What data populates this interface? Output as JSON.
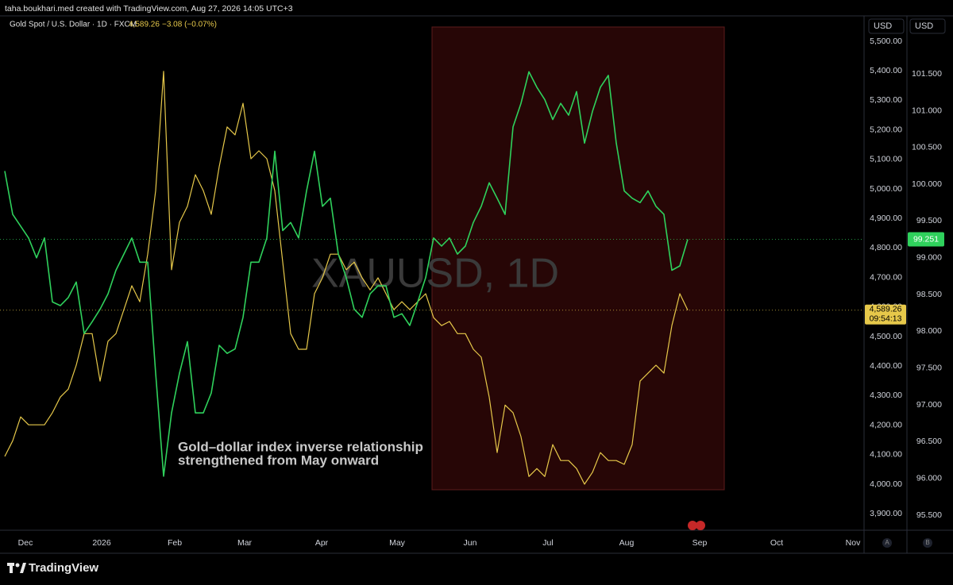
{
  "header": {
    "credit": "taha.boukhari.med created with TradingView.com, Aug 27, 2026 14:05 UTC+3",
    "price": "4,589.26",
    "change": "−3.08 (−0.07%)",
    "logo": "TradingView"
  },
  "chart_data": {
    "type": "line",
    "watermark": "XAUUSD, 1D",
    "annotation": [
      "Gold–dollar index inverse relationship",
      "strengthened from May onward"
    ],
    "axis_unit": "USD",
    "axis_unit_2": "USD",
    "scale_buttons": [
      "A",
      "B"
    ],
    "grid": false,
    "xlim": [
      -0.6,
      108.2
    ],
    "xticks": [
      {
        "value": 2.6,
        "label": "Dec"
      },
      {
        "value": 12.2,
        "label": "2026"
      },
      {
        "value": 21.4,
        "label": "Feb"
      },
      {
        "value": 30.2,
        "label": "Mar"
      },
      {
        "value": 39.9,
        "label": "Apr"
      },
      {
        "value": 49.4,
        "label": "May"
      },
      {
        "value": 58.6,
        "label": "Jun"
      },
      {
        "value": 68.4,
        "label": "Jul"
      },
      {
        "value": 78.3,
        "label": "Aug"
      },
      {
        "value": 87.5,
        "label": "Sep"
      },
      {
        "value": 97.2,
        "label": "Oct"
      },
      {
        "value": 106.8,
        "label": "Nov"
      }
    ],
    "ylim": [
      3844,
      5586
    ],
    "yticks": [
      {
        "value": 3900,
        "label": "3,900.00"
      },
      {
        "value": 4000,
        "label": "4,000.00"
      },
      {
        "value": 4100,
        "label": "4,100.00"
      },
      {
        "value": 4200,
        "label": "4,200.00"
      },
      {
        "value": 4300,
        "label": "4,300.00"
      },
      {
        "value": 4400,
        "label": "4,400.00"
      },
      {
        "value": 4500,
        "label": "4,500.00"
      },
      {
        "value": 4600,
        "label": "4,600.00"
      },
      {
        "value": 4700,
        "label": "4,700.00"
      },
      {
        "value": 4800,
        "label": "4,800.00"
      },
      {
        "value": 4900,
        "label": "4,900.00"
      },
      {
        "value": 5000,
        "label": "5,000.00"
      },
      {
        "value": 5100,
        "label": "5,100.00"
      },
      {
        "value": 5200,
        "label": "5,200.00"
      },
      {
        "value": 5300,
        "label": "5,300.00"
      },
      {
        "value": 5400,
        "label": "5,400.00"
      },
      {
        "value": 5500,
        "label": "5,500.00"
      }
    ],
    "y2lim": [
      95.295,
      102.29
    ],
    "y2ticks": [
      {
        "value": 95.5,
        "label": "95.500"
      },
      {
        "value": 96,
        "label": "96.000"
      },
      {
        "value": 96.5,
        "label": "96.500"
      },
      {
        "value": 97,
        "label": "97.000"
      },
      {
        "value": 97.5,
        "label": "97.500"
      },
      {
        "value": 98,
        "label": "98.000"
      },
      {
        "value": 98.5,
        "label": "98.500"
      },
      {
        "value": 99,
        "label": "99.000"
      },
      {
        "value": 99.5,
        "label": "99.500"
      },
      {
        "value": 100,
        "label": "100.000"
      },
      {
        "value": 100.5,
        "label": "100.500"
      },
      {
        "value": 101,
        "label": "101.000"
      },
      {
        "value": 101.5,
        "label": "101.500"
      }
    ],
    "series": [
      {
        "name": "Gold Spot / U.S. Dollar · 1D · FXCM",
        "color": "#e6c84a",
        "axis": "y",
        "last_label": "4,589.26",
        "countdown": "09:54:13",
        "values": [
          4094,
          4147,
          4228,
          4201,
          4201,
          4201,
          4242,
          4295,
          4322,
          4403,
          4510,
          4510,
          4349,
          4484,
          4510,
          4591,
          4672,
          4618,
          4779,
          4994,
          5398,
          4726,
          4887,
          4941,
          5048,
          4994,
          4914,
          5075,
          5210,
          5183,
          5290,
          5102,
          5129,
          5102,
          4994,
          4752,
          4510,
          4457,
          4457,
          4645,
          4699,
          4779,
          4779,
          4726,
          4752,
          4699,
          4658,
          4699,
          4645,
          4591,
          4618,
          4591,
          4618,
          4645,
          4564,
          4537,
          4551,
          4510,
          4510,
          4457,
          4430,
          4295,
          4107,
          4268,
          4242,
          4161,
          4026,
          4053,
          4026,
          4134,
          4080,
          4080,
          4053,
          4000,
          4040,
          4107,
          4080,
          4080,
          4067,
          4134,
          4349,
          4376,
          4403,
          4376,
          4537,
          4645,
          4589.26
        ]
      },
      {
        "color": "#2fd15c",
        "axis": "y2",
        "last_label": "99.251",
        "values": [
          100.18,
          99.59,
          99.43,
          99.27,
          99.0,
          99.27,
          98.4,
          98.35,
          98.46,
          98.67,
          97.97,
          98.13,
          98.3,
          98.51,
          98.83,
          99.05,
          99.27,
          98.94,
          98.94,
          97.43,
          96.03,
          96.89,
          97.43,
          97.86,
          96.89,
          96.89,
          97.16,
          97.81,
          97.7,
          97.76,
          98.19,
          98.94,
          98.94,
          99.27,
          100.45,
          99.37,
          99.48,
          99.27,
          99.91,
          100.45,
          99.7,
          99.81,
          99.05,
          98.73,
          98.3,
          98.19,
          98.51,
          98.62,
          98.62,
          98.19,
          98.24,
          98.08,
          98.4,
          98.73,
          99.27,
          99.16,
          99.27,
          99.05,
          99.16,
          99.48,
          99.7,
          100.02,
          99.81,
          99.59,
          100.78,
          101.1,
          101.53,
          101.32,
          101.15,
          100.88,
          101.1,
          100.94,
          101.26,
          100.56,
          100.99,
          101.32,
          101.48,
          100.56,
          99.91,
          99.81,
          99.75,
          99.91,
          99.7,
          99.59,
          98.83,
          98.89,
          99.251
        ]
      }
    ]
  }
}
